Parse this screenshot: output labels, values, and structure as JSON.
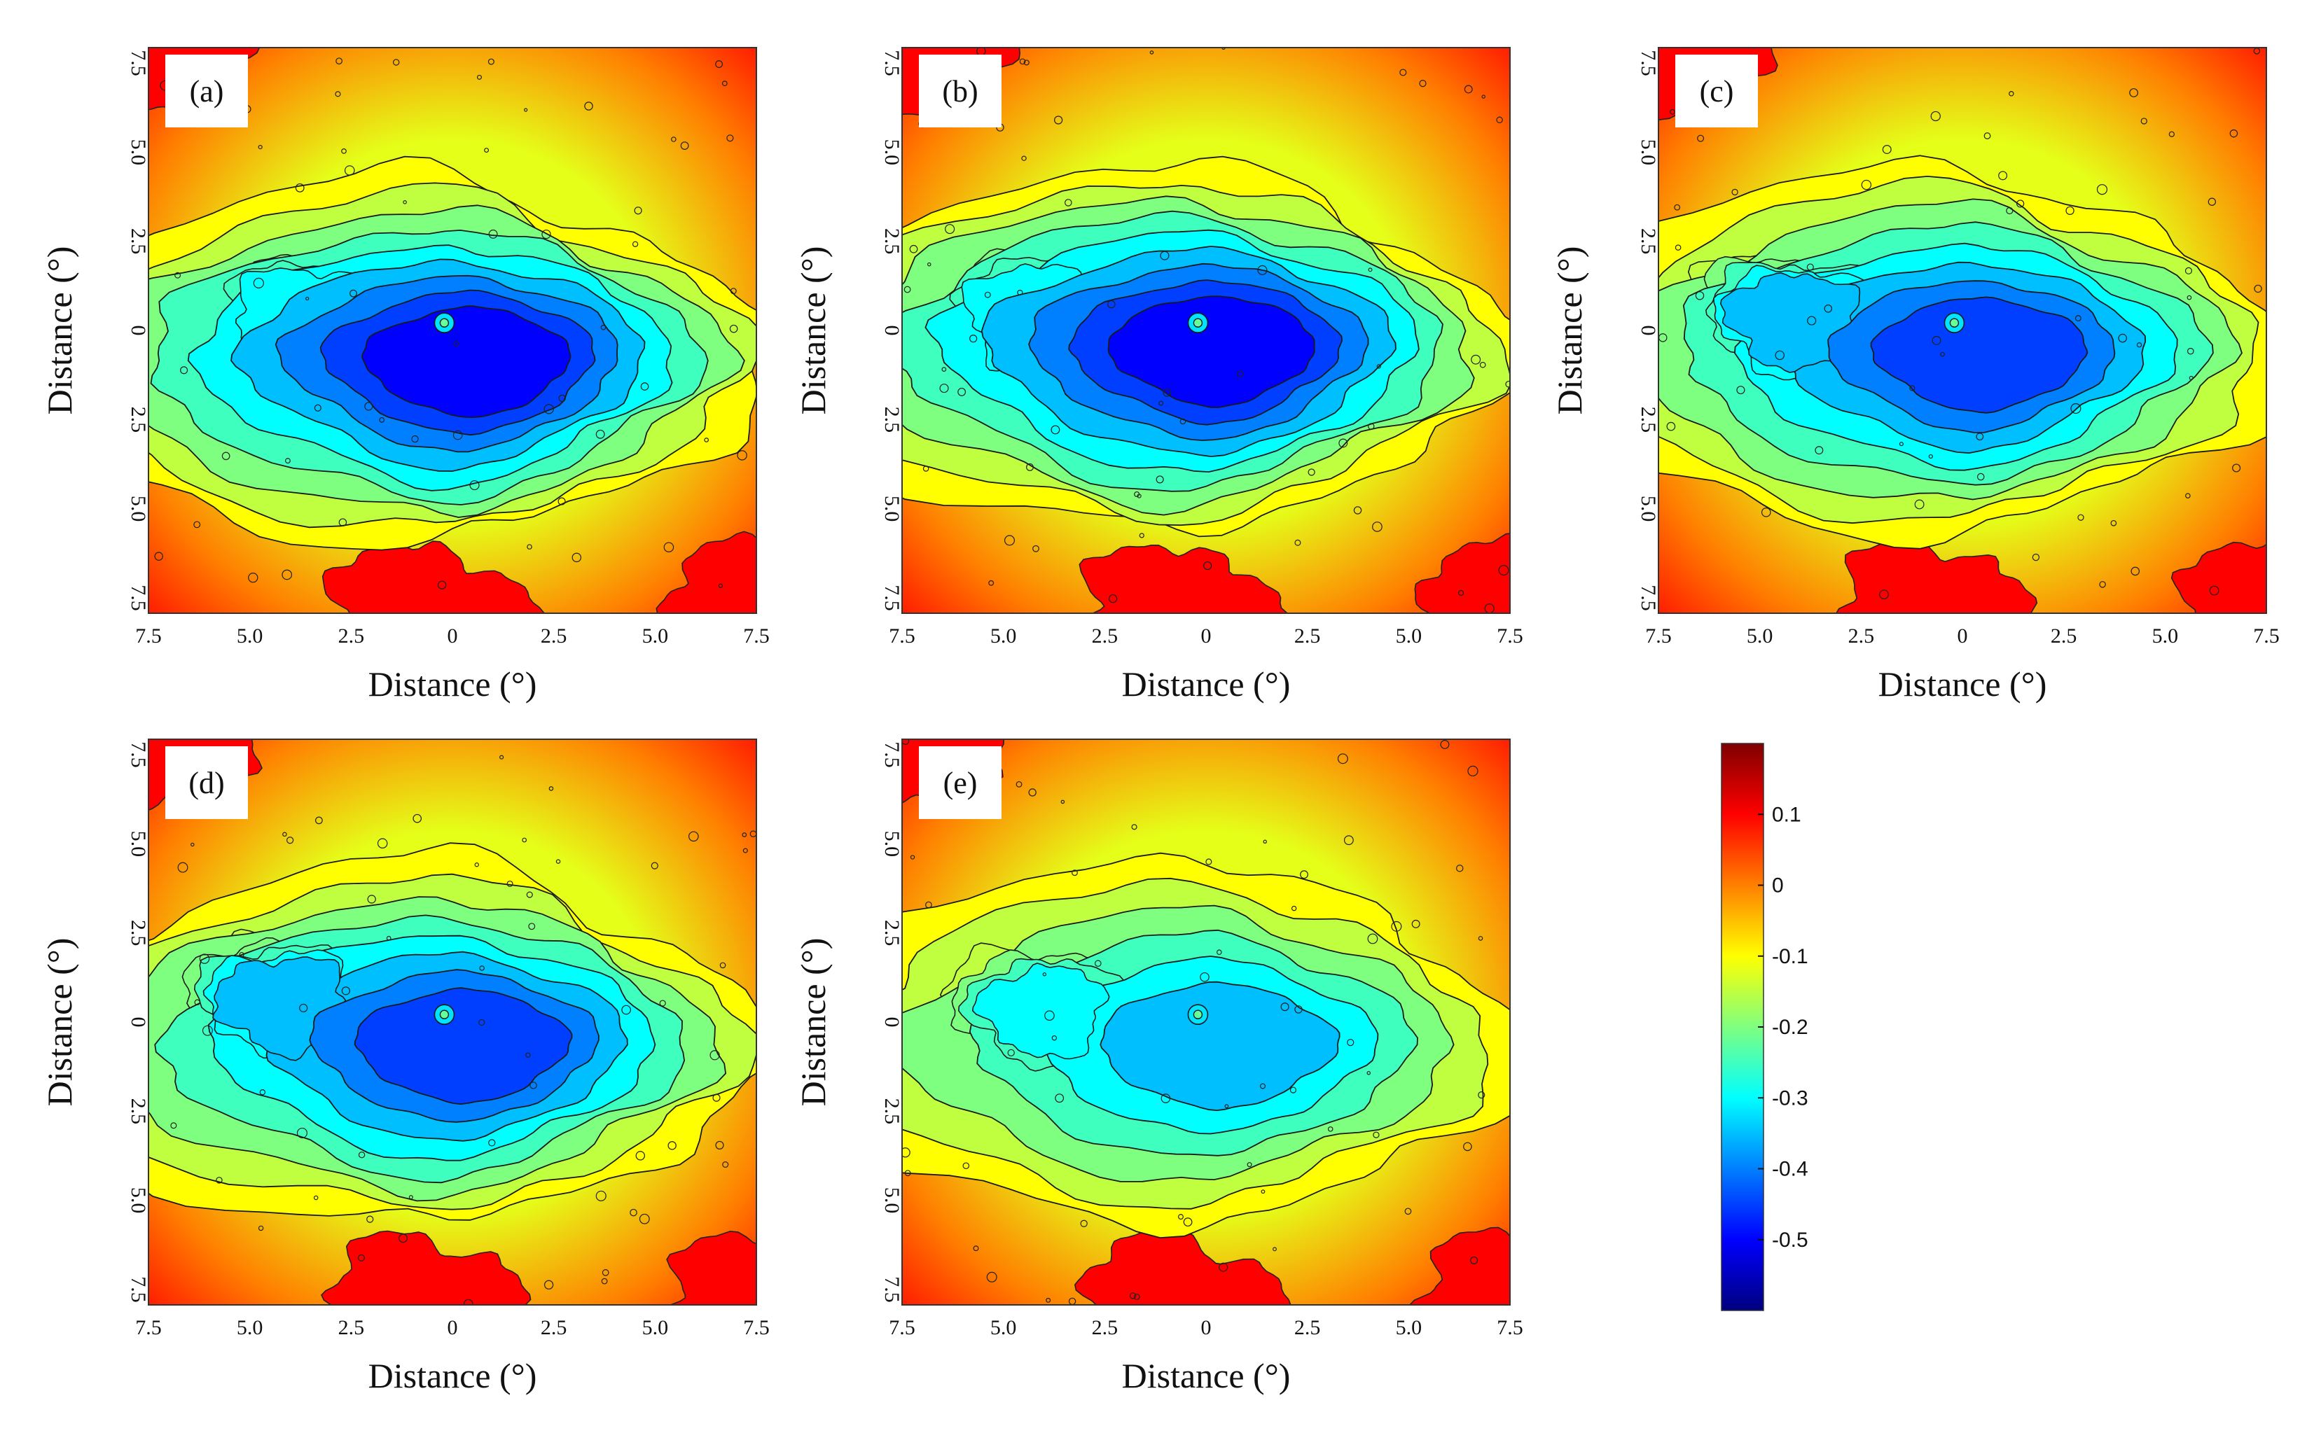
{
  "chart_data": {
    "type": "heatmap",
    "description_source": "five filled contour panels sharing one colour scale",
    "colormap": [
      "#00007f",
      "#0000ff",
      "#007fff",
      "#00ffff",
      "#7fff7f",
      "#ffff00",
      "#ff7f00",
      "#ff0000",
      "#7f0000"
    ],
    "colorbar": {
      "range": [
        -0.6,
        0.2
      ],
      "ticks": [
        0.1,
        0,
        -0.1,
        -0.2,
        -0.3,
        -0.4,
        -0.5
      ],
      "tick_labels": [
        "0.1",
        "0",
        "-0.1",
        "-0.2",
        "-0.3",
        "-0.4",
        "-0.5"
      ]
    },
    "xlabel": "Distance (°)",
    "ylabel": "Distance (°)",
    "x_tick_labels": [
      "7.5",
      "5.0",
      "2.5",
      "0",
      "2.5",
      "5.0",
      "7.5"
    ],
    "y_tick_labels": [
      "7.5",
      "5.0",
      "2.5",
      "0",
      "2.5",
      "5.0",
      "7.5"
    ],
    "x_range": [
      -7.5,
      7.5
    ],
    "y_range": [
      -7.5,
      7.5
    ],
    "panels": [
      {
        "label": "(a)",
        "min_value": -0.55,
        "main_center": [
          0.5,
          -0.8
        ],
        "secondary_center": [
          -3.5,
          0.2
        ],
        "secondary_value": -0.3
      },
      {
        "label": "(b)",
        "min_value": -0.53,
        "main_center": [
          0.3,
          -0.5
        ],
        "secondary_center": [
          -4.0,
          0.3
        ],
        "secondary_value": -0.32
      },
      {
        "label": "(c)",
        "min_value": -0.5,
        "main_center": [
          0.6,
          -0.6
        ],
        "secondary_center": [
          -4.2,
          0.3
        ],
        "secondary_value": -0.33
      },
      {
        "label": "(d)",
        "min_value": -0.48,
        "main_center": [
          0.4,
          -0.6
        ],
        "secondary_center": [
          -4.2,
          0.5
        ],
        "secondary_value": -0.33
      },
      {
        "label": "(e)",
        "min_value": -0.42,
        "main_center": [
          0.5,
          -0.6
        ],
        "secondary_center": [
          -4.0,
          0.3
        ],
        "secondary_value": -0.32
      }
    ]
  }
}
